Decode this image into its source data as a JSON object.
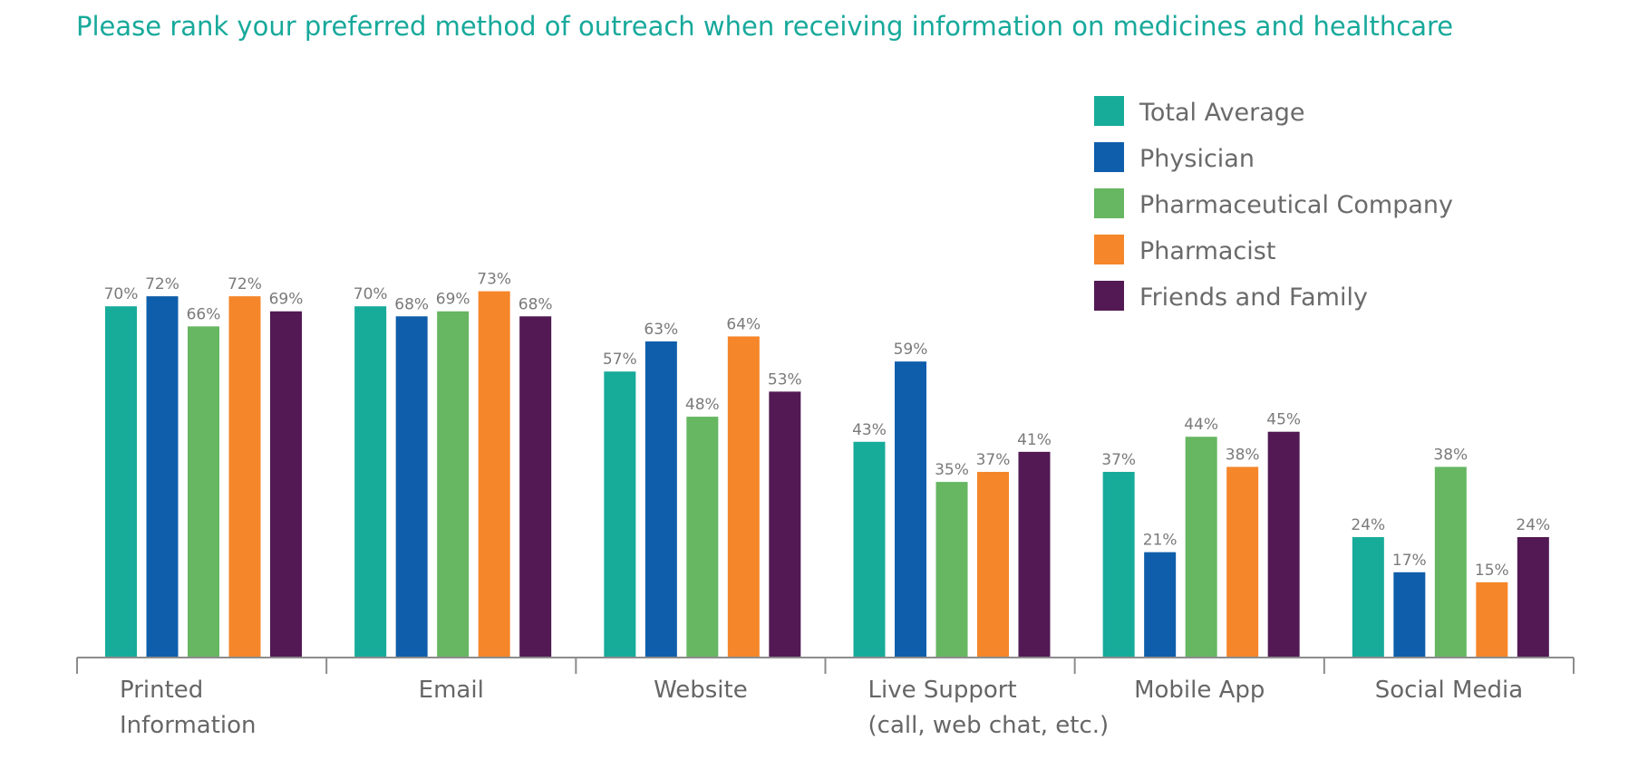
{
  "chart_data": {
    "type": "bar",
    "title": "Please rank your preferred method of outreach when receiving information on medicines and healthcare",
    "categories": [
      [
        "Printed",
        "Information"
      ],
      [
        "Email"
      ],
      [
        "Website"
      ],
      [
        "Live Support",
        "(call, web chat, etc.)"
      ],
      [
        "Mobile App"
      ],
      [
        "Social Media"
      ]
    ],
    "series": [
      {
        "name": "Total Average",
        "color": "#17ab9a",
        "values": [
          70,
          70,
          57,
          43,
          37,
          24
        ]
      },
      {
        "name": "Physician",
        "color": "#0f5eab",
        "values": [
          72,
          68,
          63,
          59,
          21,
          17
        ]
      },
      {
        "name": "Pharmaceutical Company",
        "color": "#66b662",
        "values": [
          66,
          69,
          48,
          35,
          44,
          38
        ]
      },
      {
        "name": "Pharmacist",
        "color": "#f5862a",
        "values": [
          72,
          73,
          64,
          37,
          38,
          15
        ]
      },
      {
        "name": "Friends and Family",
        "color": "#521954",
        "values": [
          69,
          68,
          53,
          41,
          45,
          24
        ]
      }
    ],
    "value_suffix": "%",
    "ylim": [
      0,
      100
    ],
    "legend_position": "top-right",
    "grid": false
  }
}
